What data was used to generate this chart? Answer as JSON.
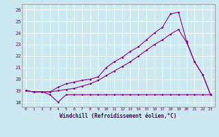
{
  "xlabel": "Windchill (Refroidissement éolien,°C)",
  "background_color": "#cce8f0",
  "grid_color": "#aad4e0",
  "line_color": "#880088",
  "xlim": [
    -0.5,
    23.5
  ],
  "ylim": [
    17.6,
    26.5
  ],
  "yticks": [
    18,
    19,
    20,
    21,
    22,
    23,
    24,
    25,
    26
  ],
  "xticks": [
    0,
    1,
    2,
    3,
    4,
    5,
    6,
    7,
    8,
    9,
    10,
    11,
    12,
    13,
    14,
    15,
    16,
    17,
    18,
    19,
    20,
    21,
    22,
    23
  ],
  "line1_x": [
    0,
    1,
    2,
    3,
    4,
    5,
    6,
    7,
    8,
    9,
    10,
    11,
    12,
    13,
    14,
    15,
    16,
    17,
    18,
    19,
    20,
    21,
    22,
    23
  ],
  "line1_y": [
    19.0,
    18.9,
    18.9,
    18.65,
    18.0,
    18.65,
    18.65,
    18.65,
    18.65,
    18.65,
    18.65,
    18.65,
    18.65,
    18.65,
    18.65,
    18.65,
    18.65,
    18.65,
    18.65,
    18.65,
    18.65,
    18.65,
    18.65,
    18.65
  ],
  "line2_x": [
    0,
    1,
    2,
    3,
    4,
    5,
    6,
    7,
    8,
    9,
    10,
    11,
    12,
    13,
    14,
    15,
    16,
    17,
    18,
    19,
    20,
    21,
    22,
    23
  ],
  "line2_y": [
    19.0,
    18.9,
    18.9,
    18.9,
    19.3,
    19.6,
    19.75,
    19.9,
    20.0,
    20.2,
    21.0,
    21.5,
    21.9,
    22.4,
    22.8,
    23.4,
    24.0,
    24.5,
    25.65,
    25.8,
    23.3,
    21.5,
    20.4,
    18.65
  ],
  "line3_x": [
    0,
    1,
    2,
    3,
    4,
    5,
    6,
    7,
    8,
    9,
    10,
    11,
    12,
    13,
    14,
    15,
    16,
    17,
    18,
    19,
    20,
    21,
    22,
    23
  ],
  "line3_y": [
    19.0,
    18.9,
    18.9,
    18.9,
    19.0,
    19.1,
    19.2,
    19.4,
    19.6,
    19.9,
    20.3,
    20.7,
    21.1,
    21.5,
    22.0,
    22.5,
    23.0,
    23.4,
    23.9,
    24.3,
    23.2,
    21.5,
    20.4,
    18.65
  ]
}
